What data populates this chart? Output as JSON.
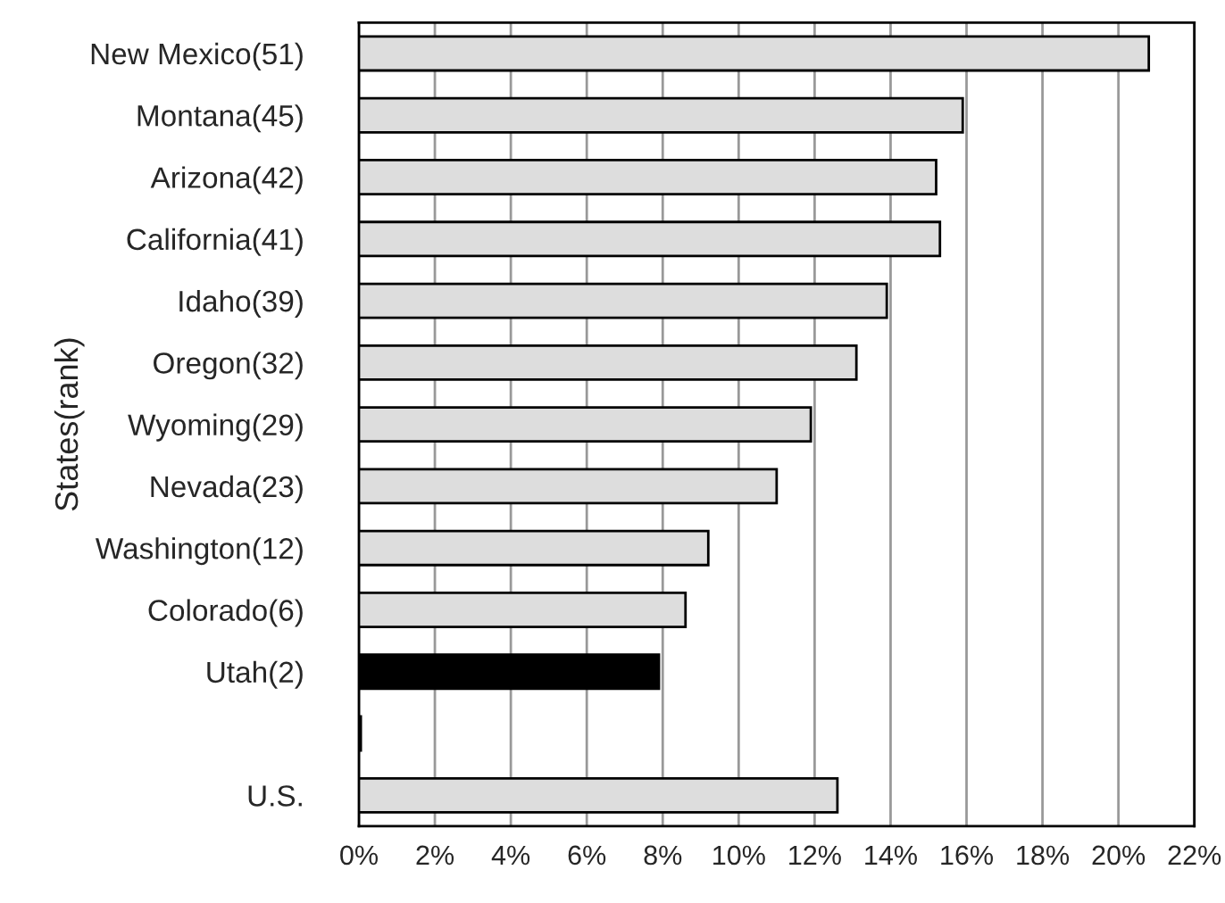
{
  "chart_data": {
    "type": "bar",
    "orientation": "horizontal",
    "ylabel": "States(rank)",
    "categories": [
      "New Mexico(51)",
      "Montana(45)",
      "Arizona(42)",
      "California(41)",
      "Idaho(39)",
      "Oregon(32)",
      "Wyoming(29)",
      "Nevada(23)",
      "Washington(12)",
      "Colorado(6)",
      "Utah(2)",
      null,
      "U.S."
    ],
    "values": [
      20.8,
      15.9,
      15.2,
      15.3,
      13.9,
      13.1,
      11.9,
      11.0,
      9.2,
      8.6,
      7.9,
      0.05,
      12.6
    ],
    "colors": [
      "#dddddd",
      "#dddddd",
      "#dddddd",
      "#dddddd",
      "#dddddd",
      "#dddddd",
      "#dddddd",
      "#dddddd",
      "#dddddd",
      "#dddddd",
      "#000000",
      "#000000",
      "#dddddd"
    ],
    "xlim": [
      0,
      22
    ],
    "xticks": [
      {
        "value": 0,
        "label": "0%"
      },
      {
        "value": 2,
        "label": "2%"
      },
      {
        "value": 4,
        "label": "4%"
      },
      {
        "value": 6,
        "label": "6%"
      },
      {
        "value": 8,
        "label": "8%"
      },
      {
        "value": 10,
        "label": "10%"
      },
      {
        "value": 12,
        "label": "12%"
      },
      {
        "value": 14,
        "label": "14%"
      },
      {
        "value": 16,
        "label": "16%"
      },
      {
        "value": 18,
        "label": "18%"
      },
      {
        "value": 20,
        "label": "20%"
      },
      {
        "value": 22,
        "label": "22%"
      }
    ],
    "grid": "x",
    "legend": false
  }
}
